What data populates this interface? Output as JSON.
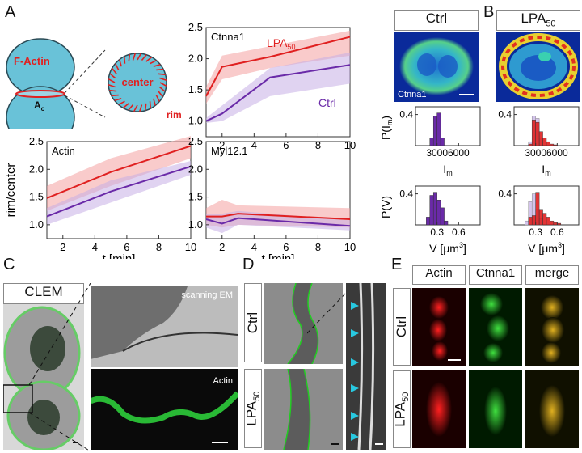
{
  "panel_letters": {
    "a": "A",
    "b": "B",
    "c": "C",
    "d": "D",
    "e": "E"
  },
  "panelA": {
    "cartoon": {
      "factin": "F-Actin",
      "ac_main": "A",
      "ac_sub": "c",
      "center": "center",
      "rim": "rim"
    },
    "ylabel": "rim/center",
    "xlabel": "t [min]",
    "colors": {
      "lpa": "#e02020",
      "lpa_band": "#f4a0a0",
      "ctrl": "#6a2aa8",
      "ctrl_band": "#c6aee6"
    }
  },
  "chart_data": [
    {
      "type": "line",
      "title": "Ctnna1",
      "xlim": [
        1,
        10
      ],
      "ylim": [
        0.75,
        2.5
      ],
      "xticks": [
        2,
        4,
        6,
        8,
        10
      ],
      "yticks": [
        1.0,
        1.5,
        2.0,
        2.5
      ],
      "series": [
        {
          "name": "LPA",
          "name_sub": "50",
          "x": [
            1,
            2,
            5,
            10
          ],
          "y": [
            1.4,
            1.87,
            2.03,
            2.35
          ],
          "lo": [
            1.28,
            1.67,
            1.85,
            2.05
          ],
          "hi": [
            1.55,
            2.05,
            2.2,
            2.45
          ]
        },
        {
          "name": "Ctrl",
          "x": [
            1,
            2,
            5,
            10
          ],
          "y": [
            1.0,
            1.12,
            1.7,
            1.9
          ],
          "lo": [
            0.97,
            1.0,
            1.4,
            1.6
          ],
          "hi": [
            1.05,
            1.25,
            1.85,
            2.1
          ]
        }
      ]
    },
    {
      "type": "line",
      "title": "Actin",
      "xlim": [
        1,
        10
      ],
      "ylim": [
        0.75,
        2.5
      ],
      "xticks": [
        2,
        4,
        6,
        8,
        10
      ],
      "yticks": [
        1.0,
        1.5,
        2.0,
        2.5
      ],
      "series": [
        {
          "name": "LPA",
          "x": [
            1,
            5,
            10
          ],
          "y": [
            1.48,
            1.95,
            2.42
          ],
          "lo": [
            1.25,
            1.7,
            2.2
          ],
          "hi": [
            1.7,
            2.2,
            2.6
          ]
        },
        {
          "name": "Ctrl",
          "x": [
            1,
            5,
            10
          ],
          "y": [
            1.15,
            1.6,
            2.05
          ],
          "lo": [
            1.0,
            1.4,
            1.9
          ],
          "hi": [
            1.3,
            1.8,
            2.15
          ]
        }
      ]
    },
    {
      "type": "line",
      "title": "Myl12.1",
      "xlim": [
        1,
        10
      ],
      "ylim": [
        0.75,
        2.5
      ],
      "xticks": [
        2,
        4,
        6,
        8,
        10
      ],
      "yticks": [
        1.0,
        1.5,
        2.0,
        2.5
      ],
      "series": [
        {
          "name": "LPA",
          "x": [
            1,
            2,
            3,
            10
          ],
          "y": [
            1.15,
            1.15,
            1.2,
            1.1
          ],
          "lo": [
            1.0,
            0.95,
            1.0,
            0.95
          ],
          "hi": [
            1.3,
            1.45,
            1.35,
            1.3
          ]
        },
        {
          "name": "Ctrl",
          "x": [
            1,
            2,
            3,
            10
          ],
          "y": [
            1.1,
            1.02,
            1.12,
            0.98
          ],
          "lo": [
            0.95,
            0.85,
            1.0,
            0.9
          ],
          "hi": [
            1.2,
            1.2,
            1.25,
            1.08
          ]
        }
      ]
    },
    {
      "type": "bar",
      "ylabel": "P(I",
      "ylabel_sub": "m",
      "ylabel_tail": ")",
      "xlabel": "I",
      "xlabel_sub": "m",
      "xticks": [
        3000,
        6000
      ],
      "yticks": [
        0.4
      ],
      "ylim": [
        0,
        0.5
      ],
      "xlim": [
        0,
        9000
      ],
      "ctrl": {
        "bins": [
          2000,
          2500,
          3000,
          3500
        ],
        "values": [
          0.1,
          0.38,
          0.42,
          0.1
        ]
      },
      "lpa": {
        "bins": [
          2000,
          2500,
          3000,
          3500,
          4000,
          4500,
          5000,
          5500
        ],
        "values": [
          0.02,
          0.33,
          0.3,
          0.18,
          0.1,
          0.05,
          0.02,
          0.01
        ],
        "ghost": [
          0.05,
          0.38,
          0.35,
          0.1,
          0.0,
          0.0,
          0.0,
          0.0
        ]
      }
    },
    {
      "type": "bar",
      "ylabel": "P(V)",
      "xlabel": "V [μm",
      "xlabel_sup": "3",
      "xlabel_tail": "]",
      "xticks": [
        0.3,
        0.6
      ],
      "yticks": [
        0.4
      ],
      "ylim": [
        0,
        0.5
      ],
      "xlim": [
        0,
        0.9
      ],
      "ctrl": {
        "bins": [
          0.15,
          0.2,
          0.25,
          0.3,
          0.35,
          0.4
        ],
        "values": [
          0.1,
          0.38,
          0.42,
          0.32,
          0.22,
          0.05
        ]
      },
      "lpa": {
        "bins": [
          0.15,
          0.2,
          0.25,
          0.3,
          0.35,
          0.4,
          0.45,
          0.5,
          0.55,
          0.6
        ],
        "values": [
          0.0,
          0.1,
          0.12,
          0.42,
          0.2,
          0.15,
          0.1,
          0.05,
          0.03,
          0.02
        ],
        "ghost": [
          0.05,
          0.3,
          0.4,
          0.2,
          0.08,
          0.0,
          0.0,
          0.0,
          0.0,
          0.0
        ]
      }
    }
  ],
  "panelB": {
    "ctrl": "Ctrl",
    "lpa_main": "LPA",
    "lpa_sub": "50",
    "img_label": "Ctnna1"
  },
  "panelC": {
    "clem": "CLEM",
    "sem": "scanning EM",
    "actin": "Actin"
  },
  "panelD": {
    "ctrl": "Ctrl",
    "lpa_main": "LPA",
    "lpa_sub": "50"
  },
  "panelE": {
    "actin": "Actin",
    "ctnna1": "Ctnna1",
    "merge": "merge",
    "ctrl": "Ctrl",
    "lpa_main": "LPA",
    "lpa_sub": "50"
  }
}
